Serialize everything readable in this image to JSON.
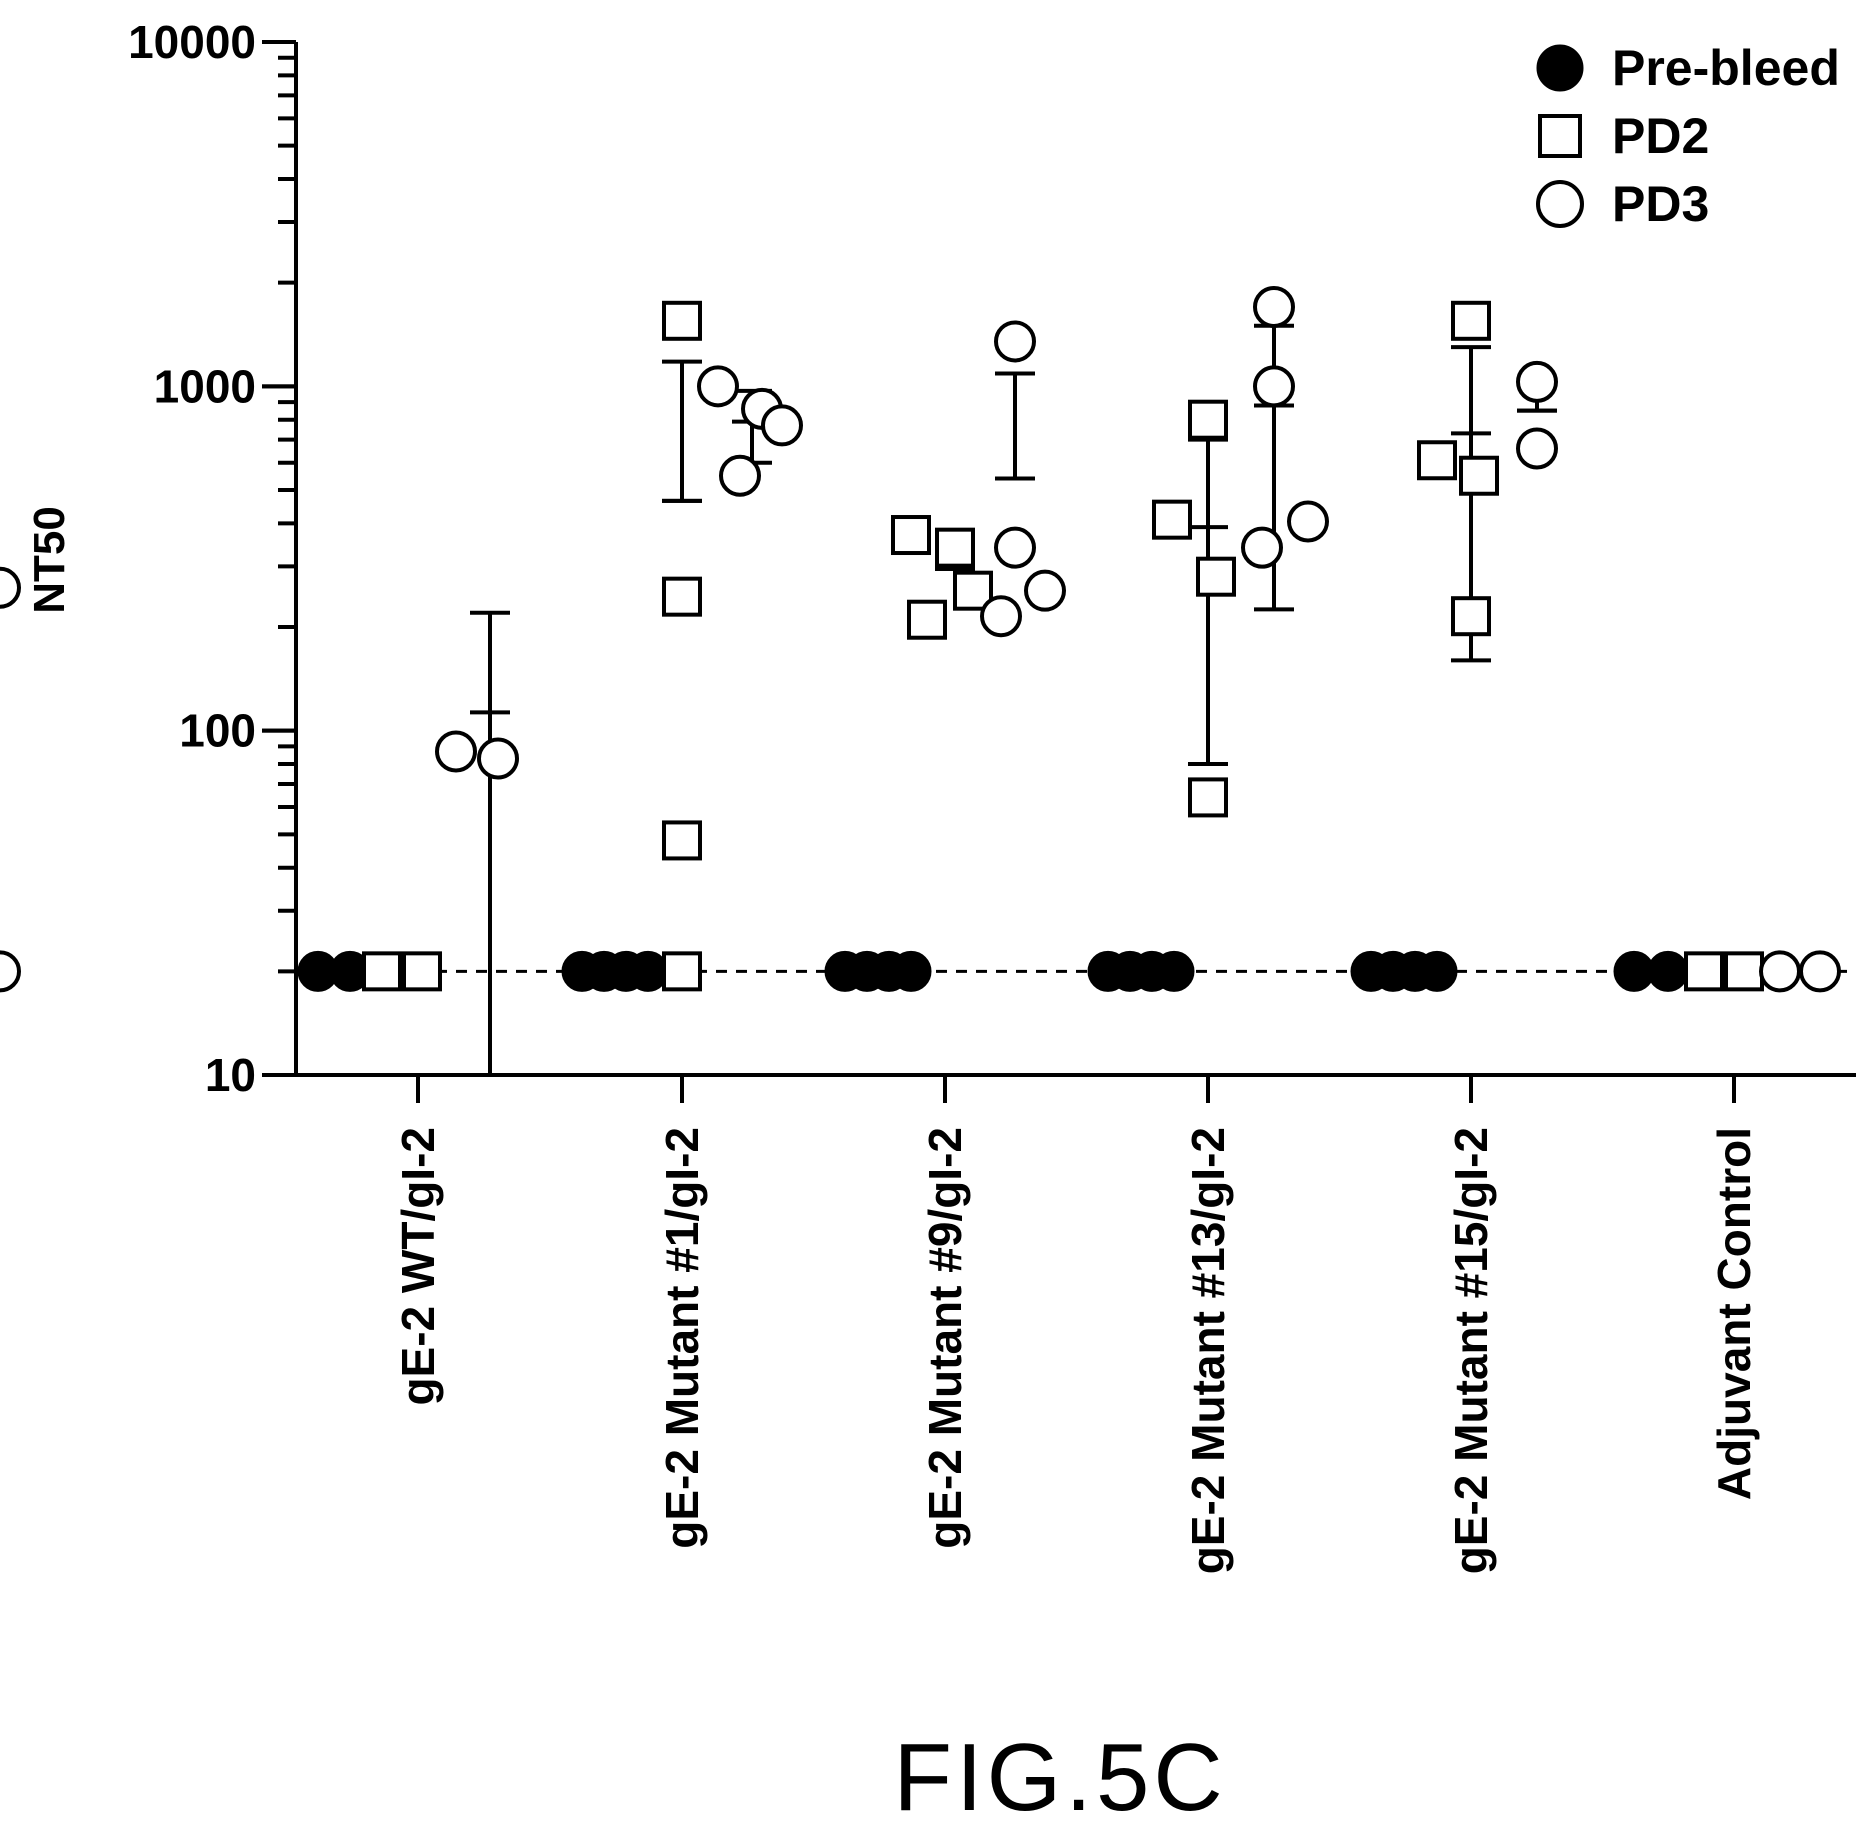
{
  "figure_label": "FIG.5C",
  "chart_data": {
    "type": "scatter",
    "title": "",
    "xlabel": "",
    "ylabel": "NT50",
    "yscale": "log",
    "ylim": [
      10,
      10000
    ],
    "yticks": [
      {
        "value": 10,
        "label": "10"
      },
      {
        "value": 100,
        "label": "100"
      },
      {
        "value": 1000,
        "label": "1000"
      },
      {
        "value": 10000,
        "label": "10000"
      }
    ],
    "reference_line": {
      "value": 20,
      "style": "dashed"
    },
    "legend": {
      "placement": "top-right",
      "entries": [
        {
          "name": "Pre-bleed",
          "marker": "filled-circle"
        },
        {
          "name": "PD2",
          "marker": "open-square"
        },
        {
          "name": "PD3",
          "marker": "open-circle"
        }
      ]
    },
    "categories": [
      "gE-2 WT/gI-2",
      "gE-2 Mutant #1/gI-2",
      "gE-2 Mutant #9/gI-2",
      "gE-2 Mutant #13/gI-2",
      "gE-2 Mutant #15/gI-2",
      "Adjuvant Control"
    ],
    "groups": [
      {
        "category": "gE-2 WT/gI-2",
        "pre_bleed": {
          "values": [
            20,
            20
          ]
        },
        "pd2": {
          "values": [
            20,
            20
          ]
        },
        "pd3": {
          "values": [
            87,
            83,
            260,
            20
          ],
          "mean": 113,
          "sd_low": 10,
          "sd_high": 220
        }
      },
      {
        "category": "gE-2 Mutant #1/gI-2",
        "pre_bleed": {
          "values": [
            20,
            20,
            20,
            20
          ]
        },
        "pd2": {
          "values": [
            1550,
            245,
            48,
            20
          ],
          "mean": 465,
          "sd_low": 465,
          "sd_high": 1180
        },
        "pd3": {
          "values": [
            1000,
            550,
            860,
            770
          ],
          "mean": 790,
          "sd_low": 600,
          "sd_high": 970
        }
      },
      {
        "category": "gE-2 Mutant #9/gI-2",
        "pre_bleed": {
          "values": [
            20,
            20,
            20,
            20
          ]
        },
        "pd2": {
          "values": [
            370,
            210,
            340,
            255
          ],
          "mean": 295,
          "sd_low": 295,
          "sd_high": 295
        },
        "pd3": {
          "values": [
            1350,
            215,
            340,
            255
          ],
          "mean": 540,
          "sd_low": 540,
          "sd_high": 1090
        }
      },
      {
        "category": "gE-2 Mutant #13/gI-2",
        "pre_bleed": {
          "values": [
            20,
            20,
            20,
            20
          ]
        },
        "pd2": {
          "values": [
            410,
            800,
            280,
            64
          ],
          "mean": 390,
          "sd_low": 80,
          "sd_high": 700
        },
        "pd3": {
          "values": [
            340,
            1700,
            1000,
            405
          ],
          "mean": 880,
          "sd_low": 225,
          "sd_high": 1500
        }
      },
      {
        "category": "gE-2 Mutant #15/gI-2",
        "pre_bleed": {
          "values": [
            20,
            20,
            20,
            20
          ]
        },
        "pd2": {
          "values": [
            610,
            1550,
            215,
            550
          ],
          "mean": 730,
          "sd_low": 160,
          "sd_high": 1300
        },
        "pd3": {
          "values": [
            1030,
            660
          ],
          "mean": 850,
          "sd_low": 850,
          "sd_high": 1000
        }
      },
      {
        "category": "Adjuvant Control",
        "pre_bleed": {
          "values": [
            20,
            20
          ]
        },
        "pd2": {
          "values": [
            20,
            20
          ]
        },
        "pd3": {
          "values": [
            20,
            20
          ]
        }
      }
    ]
  }
}
